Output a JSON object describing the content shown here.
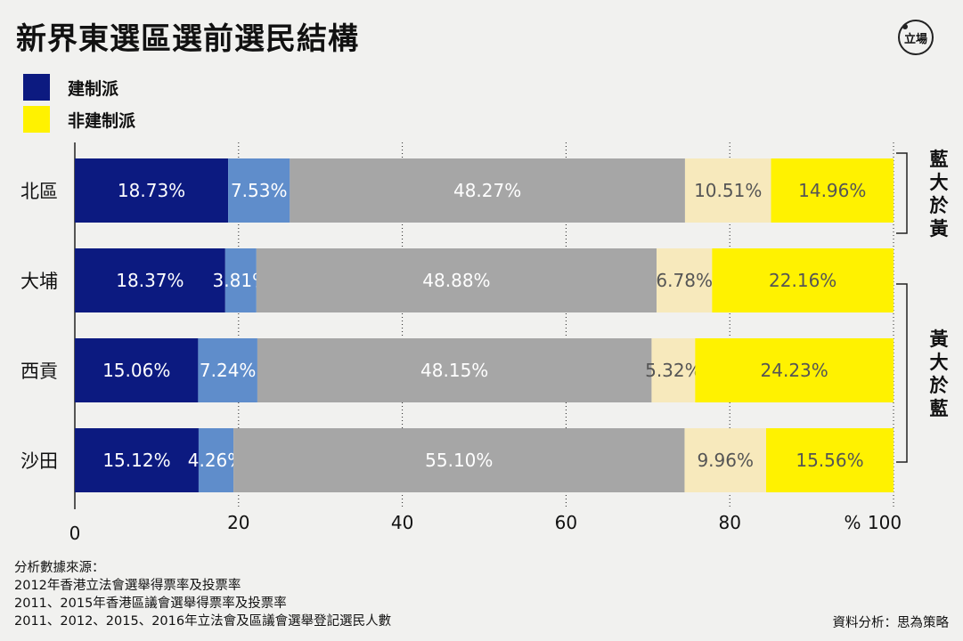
{
  "title": "新界東選區選前選民結構",
  "logo_text": "立場",
  "legend": [
    {
      "label": "建制派",
      "color": "#0c1a80"
    },
    {
      "label": "非建制派",
      "color": "#fff200"
    }
  ],
  "colors": {
    "segments": [
      "#0c1a80",
      "#5f8dcb",
      "#a6a6a6",
      "#f7e9bc",
      "#fff200"
    ],
    "label_light": "#ffffff",
    "label_dark": "#555555"
  },
  "chart_data": {
    "type": "bar",
    "orientation": "horizontal",
    "stacked": true,
    "categories": [
      "北區",
      "大埔",
      "西貢",
      "沙田"
    ],
    "series": [
      {
        "values": [
          18.73,
          18.37,
          15.06,
          15.12
        ],
        "labels": [
          "18.73%",
          "18.37%",
          "15.06%",
          "15.12%"
        ]
      },
      {
        "values": [
          7.53,
          3.81,
          7.24,
          4.26
        ],
        "labels": [
          "7.53%",
          "3.81%",
          "7.24%",
          "4.26%"
        ]
      },
      {
        "values": [
          48.27,
          48.88,
          48.15,
          55.1
        ],
        "labels": [
          "48.27%",
          "48.88%",
          "48.15%",
          "55.10%"
        ]
      },
      {
        "values": [
          10.51,
          6.78,
          5.32,
          9.96
        ],
        "labels": [
          "10.51%",
          "6.78%",
          "5.32%",
          "9.96%"
        ]
      },
      {
        "values": [
          14.96,
          22.16,
          24.23,
          15.56
        ],
        "labels": [
          "14.96%",
          "22.16%",
          "24.23%",
          "15.56%"
        ]
      }
    ],
    "xlim": [
      0,
      100
    ],
    "xticks": [
      0,
      20,
      40,
      60,
      80,
      100
    ],
    "xtick_labels": [
      "0",
      "20",
      "40",
      "60",
      "80",
      "100"
    ],
    "xunit": "%",
    "grid": "vertical",
    "groups": [
      {
        "label": "藍大於黃",
        "categories": [
          "北區"
        ]
      },
      {
        "label": "黃大於藍",
        "categories": [
          "大埔",
          "西貢",
          "沙田"
        ]
      }
    ]
  },
  "sources": [
    "分析數據來源：",
    "2012年香港立法會選舉得票率及投票率",
    "2011、2015年香港區議會選舉得票率及投票率",
    "2011、2012、2015、2016年立法會及區議會選舉登記選民人數"
  ],
  "credit": "資料分析：思為策略"
}
